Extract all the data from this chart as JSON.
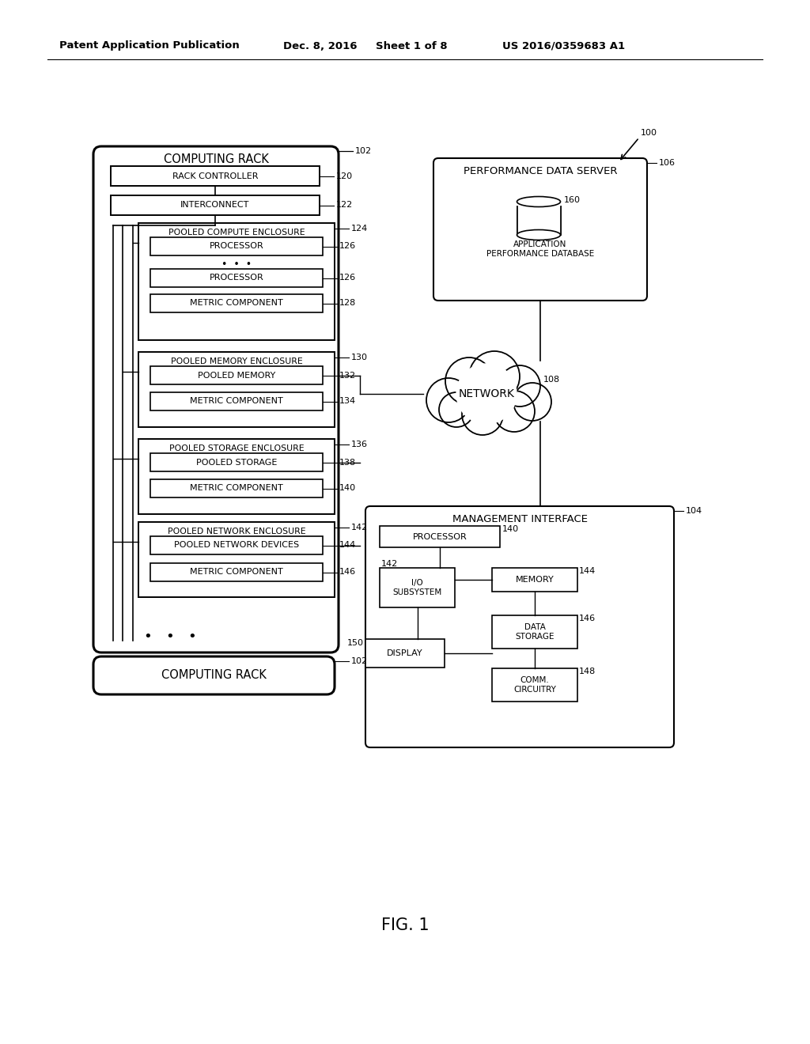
{
  "bg_color": "#ffffff",
  "header_text": "Patent Application Publication",
  "header_date": "Dec. 8, 2016",
  "header_sheet": "Sheet 1 of 8",
  "header_patent": "US 2016/0359683 A1",
  "fig_label": "FIG. 1",
  "ref_100": "100",
  "computing_rack_label": "102",
  "computing_rack_title": "COMPUTING RACK",
  "rack_controller_label": "120",
  "rack_controller_text": "RACK CONTROLLER",
  "interconnect_label": "122",
  "interconnect_text": "INTERCONNECT",
  "pooled_compute_label": "124",
  "pooled_compute_title": "POOLED COMPUTE ENCLOSURE",
  "processor1_label": "126",
  "processor1_text": "PROCESSOR",
  "processor2_label": "126",
  "processor2_text": "PROCESSOR",
  "metric1_label": "128",
  "metric1_text": "METRIC COMPONENT",
  "pooled_memory_label": "130",
  "pooled_memory_title": "POOLED MEMORY ENCLOSURE",
  "pooled_memory_item_label": "132",
  "pooled_memory_item_text": "POOLED MEMORY",
  "metric2_label": "134",
  "metric2_text": "METRIC COMPONENT",
  "pooled_storage_label": "136",
  "pooled_storage_title": "POOLED STORAGE ENCLOSURE",
  "pooled_storage_item_label": "138",
  "pooled_storage_item_text": "POOLED STORAGE",
  "metric3_label": "140",
  "metric3_text": "METRIC COMPONENT",
  "pooled_network_label": "142",
  "pooled_network_title": "POOLED NETWORK ENCLOSURE",
  "pooled_network_item_label": "144",
  "pooled_network_item_text": "POOLED NETWORK DEVICES",
  "metric4_label": "146",
  "metric4_text": "METRIC COMPONENT",
  "computing_rack2_label": "102",
  "computing_rack2_text": "COMPUTING RACK",
  "perf_server_label": "106",
  "perf_server_title": "PERFORMANCE DATA SERVER",
  "app_perf_db_label": "160",
  "app_perf_db_text": "APPLICATION\nPERFORMANCE DATABASE",
  "network_label": "108",
  "network_text": "NETWORK",
  "mgmt_label": "104",
  "mgmt_title": "MANAGEMENT INTERFACE",
  "mgmt_processor_label": "140",
  "mgmt_processor_text": "PROCESSOR",
  "io_label": "142",
  "io_text": "I/O\nSUBSYSTEM",
  "memory_label": "144",
  "memory_text": "MEMORY",
  "data_storage_label": "146",
  "data_storage_text": "DATA\nSTORAGE",
  "display_label": "150",
  "display_text": "DISPLAY",
  "comm_label": "148",
  "comm_text": "COMM.\nCIRCUITRY"
}
